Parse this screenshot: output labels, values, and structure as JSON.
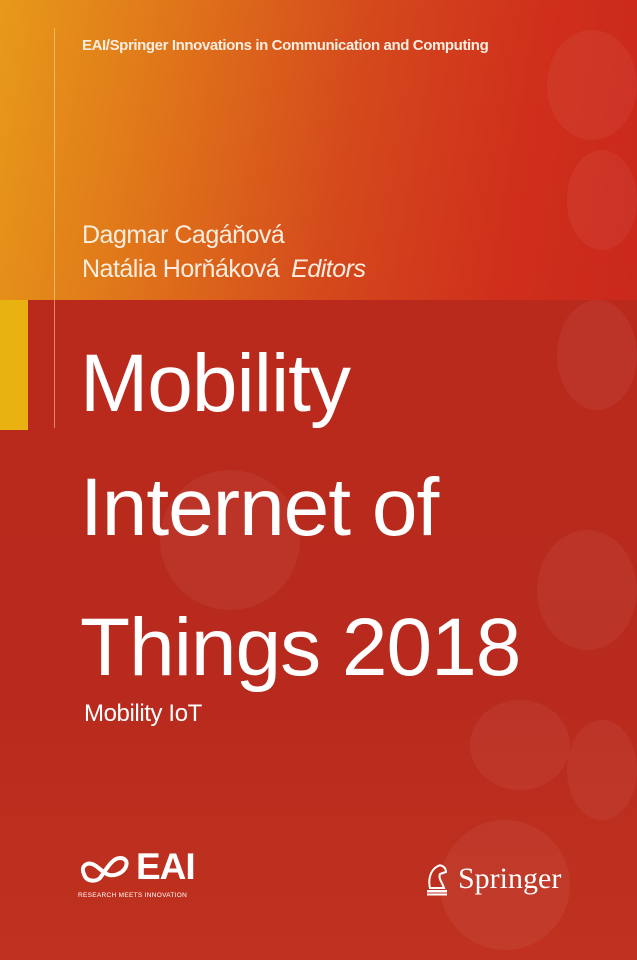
{
  "series_title": "EAI/Springer Innovations in Communication and Computing",
  "editors": [
    "Dagmar Cagáňová",
    "Natália Horňáková"
  ],
  "editors_label": "Editors",
  "title_lines": [
    "Mobility",
    "Internet of",
    "Things 2018"
  ],
  "subtitle": "Mobility IoT",
  "eai_logo": {
    "text": "EAI",
    "tagline": "RESEARCH MEETS INNOVATION"
  },
  "publisher": {
    "name": "Springer",
    "icon": "springer-horse-icon"
  },
  "colors": {
    "top_gradient_start": "#e79a1a",
    "top_gradient_end": "#c9281c",
    "bottom": "#b7271b",
    "accent_strip": "#e8b311"
  }
}
